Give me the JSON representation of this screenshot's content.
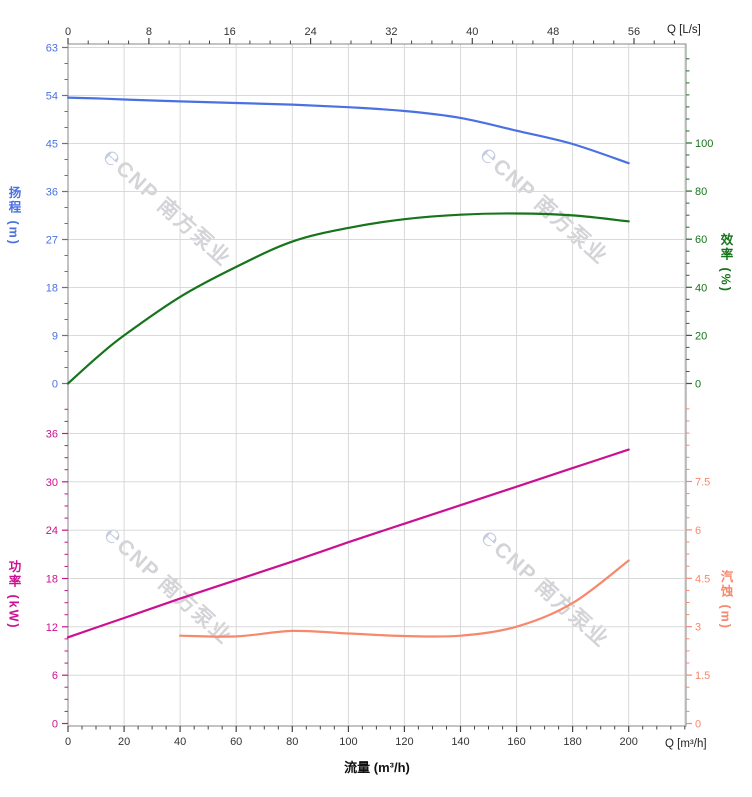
{
  "watermark": {
    "logo": "℮",
    "text": "CNP 南方泵业"
  },
  "chart_data": [
    {
      "type": "line",
      "panel": "top",
      "x_axis": {
        "label": "Q [L/s]",
        "position": "top",
        "ticks": [
          0,
          8,
          16,
          24,
          32,
          40,
          48,
          56
        ],
        "minor_step": 2,
        "range": [
          0,
          61.1
        ]
      },
      "y_left": {
        "label": "扬程 (m)",
        "color": "#4a71e2",
        "ticks": [
          0,
          9,
          18,
          27,
          36,
          45,
          54,
          63
        ],
        "minor_step": 3,
        "range": [
          0,
          63
        ]
      },
      "y_right": {
        "label": "效率 (%)",
        "color": "#16741a",
        "ticks": [
          0,
          20,
          40,
          60,
          80,
          100
        ],
        "minor_step": 5,
        "range": [
          0,
          140
        ]
      },
      "grid": true,
      "series": [
        {
          "name": "head",
          "axis": "left",
          "color": "#4a71e2",
          "x": [
            0,
            10,
            20,
            40,
            60,
            80,
            100,
            120,
            140,
            160,
            180,
            200
          ],
          "y": [
            53.6,
            53.45,
            53.25,
            52.9,
            52.6,
            52.3,
            51.8,
            51.1,
            49.8,
            47.4,
            44.9,
            41.3
          ]
        },
        {
          "name": "efficiency",
          "axis": "right",
          "color": "#16741a",
          "x": [
            0,
            10,
            20,
            40,
            60,
            80,
            100,
            120,
            140,
            160,
            180,
            200
          ],
          "y": [
            0,
            10.5,
            20,
            36,
            48.5,
            59,
            64.7,
            68.3,
            70.2,
            70.7,
            69.9,
            67.4
          ]
        }
      ]
    },
    {
      "type": "line",
      "panel": "bottom",
      "x_axis": {
        "label": "Q [m³/h]",
        "title": "流量 (m³/h)",
        "position": "bottom",
        "ticks": [
          0,
          20,
          40,
          60,
          80,
          100,
          120,
          140,
          160,
          180,
          200
        ],
        "minor_step": 5,
        "range": [
          0,
          220.4
        ]
      },
      "y_left": {
        "label": "功率 (kW)",
        "color": "#cc1190",
        "ticks": [
          0,
          6,
          12,
          18,
          24,
          30,
          36
        ],
        "minor_step": 1.5,
        "range": [
          0,
          39.1
        ]
      },
      "y_right": {
        "label": "汽蚀 (m)",
        "color": "#f6886c",
        "ticks": [
          0,
          1.5,
          3,
          4.5,
          6,
          7.5
        ],
        "minor_step": 0.375,
        "range": [
          0,
          9.77
        ]
      },
      "grid": true,
      "series": [
        {
          "name": "power",
          "axis": "left",
          "color": "#cc1190",
          "x": [
            0,
            20,
            40,
            60,
            80,
            100,
            120,
            140,
            160,
            180,
            200
          ],
          "y": [
            10.7,
            13.1,
            15.5,
            17.8,
            20.1,
            22.5,
            24.8,
            27.1,
            29.4,
            31.7,
            34.0
          ]
        },
        {
          "name": "npsh",
          "axis": "right",
          "color": "#f6886c",
          "x": [
            40,
            60,
            80,
            100,
            120,
            140,
            160,
            180,
            200
          ],
          "y": [
            2.72,
            2.7,
            2.87,
            2.79,
            2.71,
            2.72,
            3.0,
            3.73,
            5.05
          ]
        }
      ]
    }
  ],
  "style": {
    "grid_color": "#d9d9d9",
    "border_color": "#9b9b9b",
    "axis_tick_color": "#444444",
    "axis_text_color": "#333333"
  }
}
